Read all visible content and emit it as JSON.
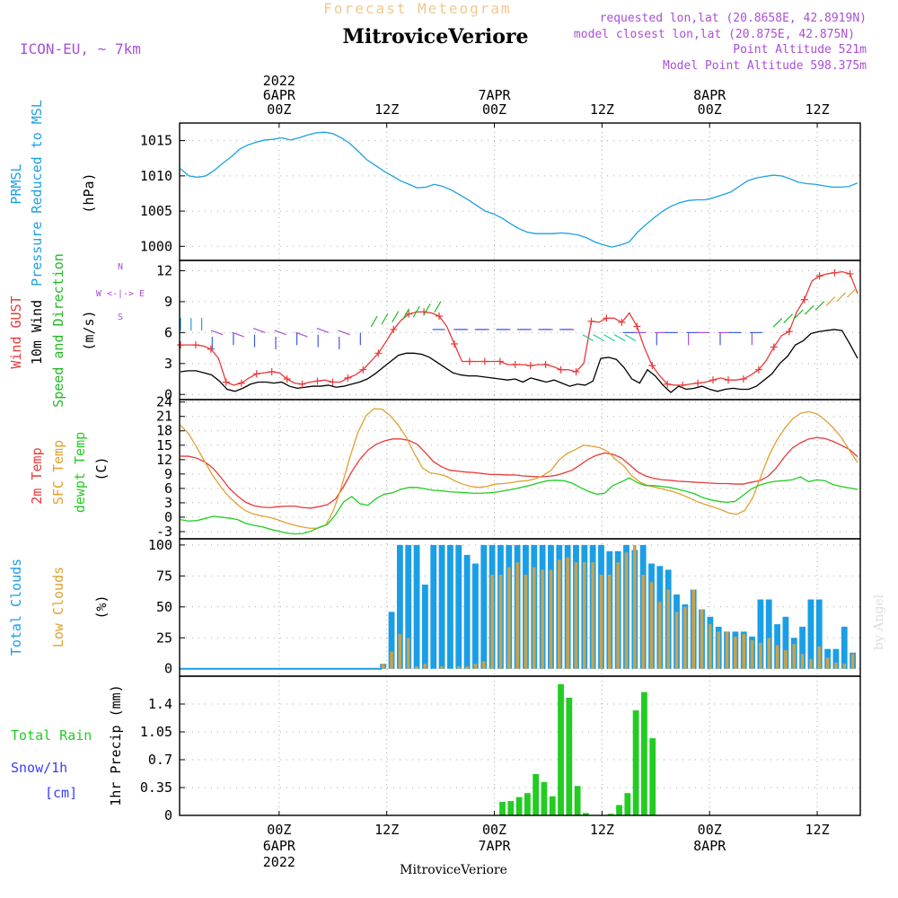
{
  "header": {
    "forecast_title": "Forecast Meteogram",
    "station": "MitroviceVeriore",
    "model": "ICON-EU, ~ 7km",
    "requested": "requested lon,lat (20.8658E, 42.8919N)",
    "closest": "model closest lon,lat (20.875E, 42.875N)",
    "point_altitude": "Point Altitude 521m",
    "model_altitude": "Model Point Altitude 598.375m",
    "footer_station": "MitroviceVeriore",
    "watermark": "by Angel"
  },
  "colors": {
    "pressure": "#1ba1e2",
    "gust": "#e83a3a",
    "wind": "#000000",
    "direction": "#22bb22",
    "temp2m": "#e83a3a",
    "sfctemp": "#e0a030",
    "dewpt": "#22cc22",
    "total_clouds": "#1a9ee6",
    "low_clouds": "#c8a24e",
    "rain": "#22cc22",
    "snow": "#3b3bff",
    "header_purple": "#a94fd6",
    "header_orange": "#f0c890"
  },
  "time_axis": {
    "top_labels": [
      {
        "t": 6,
        "lines": [
          "2022",
          "6APR",
          "00Z"
        ]
      },
      {
        "t": 18,
        "lines": [
          "12Z"
        ]
      },
      {
        "t": 30,
        "lines": [
          "7APR",
          "00Z"
        ]
      },
      {
        "t": 42,
        "lines": [
          "12Z"
        ]
      },
      {
        "t": 54,
        "lines": [
          "8APR",
          "00Z"
        ]
      },
      {
        "t": 66,
        "lines": [
          "12Z"
        ]
      }
    ],
    "bottom_labels": [
      {
        "t": 6,
        "lines": [
          "00Z",
          "6APR",
          "2022"
        ]
      },
      {
        "t": 18,
        "lines": [
          "12Z"
        ]
      },
      {
        "t": 30,
        "lines": [
          "00Z",
          "7APR"
        ]
      },
      {
        "t": 42,
        "lines": [
          "12Z"
        ]
      },
      {
        "t": 54,
        "lines": [
          "00Z",
          "8APR"
        ]
      },
      {
        "t": 66,
        "lines": [
          "12Z"
        ]
      }
    ],
    "range": [
      -5.1,
      70.8
    ]
  },
  "panel_labels": {
    "pressure": {
      "a": "PRMSL",
      "b": "Pressure Reduced to MSL",
      "unit": "(hPa)"
    },
    "wind": {
      "a": "Wind GUST",
      "b": "10m Wind",
      "c": "Speed and Direction",
      "unit": "(m/s)",
      "compass": [
        "N",
        "W <-|-> E",
        "S"
      ]
    },
    "temp": {
      "a": "2m Temp",
      "b": "SFC Temp",
      "c": "dewpt Temp",
      "unit": "(C)"
    },
    "clouds": {
      "a": "Total Clouds",
      "b": "Low Clouds",
      "unit": "(%)"
    },
    "precip": {
      "a": "Total  Rain",
      "b": "Snow/1h",
      "c": "[cm]",
      "unit": "1hr Precip (mm)"
    }
  },
  "chart_data": [
    {
      "type": "line",
      "name": "pressure",
      "ylim": [
        998,
        1017.5
      ],
      "yticks": [
        1000,
        1005,
        1010,
        1015
      ],
      "series": [
        {
          "name": "PRMSL",
          "values": [
            1011,
            1010,
            1009.8,
            1010,
            1010.8,
            1011.8,
            1012.7,
            1013.8,
            1014.4,
            1014.8,
            1015.1,
            1015.2,
            1015.4,
            1015.1,
            1015.4,
            1015.8,
            1016.1,
            1016.2,
            1016,
            1015.4,
            1014.6,
            1013.5,
            1012.3,
            1011.5,
            1010.7,
            1010,
            1009.3,
            1008.8,
            1008.3,
            1008.4,
            1008.8,
            1008.5,
            1008,
            1007.3,
            1006.6,
            1005.8,
            1005,
            1004.6,
            1004,
            1003.2,
            1002.5,
            1002,
            1001.8,
            1001.8,
            1001.8,
            1001.9,
            1001.8,
            1001.6,
            1001.2,
            1000.6,
            1000.2,
            999.9,
            1000.2,
            1000.6,
            1002,
            1003.1,
            1004.1,
            1005,
            1005.7,
            1006.2,
            1006.5,
            1006.6,
            1006.6,
            1006.9,
            1007.3,
            1007.7,
            1008.5,
            1009.3,
            1009.7,
            1009.9,
            1010.1,
            1010,
            1009.6,
            1009.1,
            1008.9,
            1008.8,
            1008.6,
            1008.4,
            1008.4,
            1008.5,
            1009
          ]
        }
      ]
    },
    {
      "type": "line",
      "name": "wind",
      "ylim": [
        -0.5,
        13
      ],
      "yticks": [
        0,
        3,
        6,
        9,
        12
      ],
      "series": [
        {
          "name": "Wind GUST",
          "values": [
            4.8,
            4.8,
            4.8,
            4.7,
            4.4,
            3.5,
            1.2,
            0.9,
            1.1,
            1.6,
            2,
            2.1,
            2.2,
            2.1,
            1.5,
            1.1,
            1,
            1.2,
            1.3,
            1.4,
            1.2,
            1.2,
            1.6,
            1.9,
            2.4,
            3.2,
            4,
            5.1,
            6.3,
            7.2,
            7.8,
            8,
            8,
            7.9,
            7.6,
            6.6,
            4.9,
            3.2,
            3.2,
            3.2,
            3.2,
            3.2,
            3.2,
            2.9,
            2.9,
            2.9,
            2.8,
            2.9,
            2.9,
            2.7,
            2.4,
            2.4,
            2.2,
            3,
            7.1,
            7,
            7.4,
            7.4,
            7,
            7.9,
            6.6,
            4.5,
            2.8,
            1.8,
            1,
            0.9,
            0.9,
            1,
            1.1,
            1.2,
            1.4,
            1.6,
            1.4,
            1.4,
            1.5,
            1.9,
            2.4,
            3.3,
            4.6,
            5.7,
            6.1,
            8,
            9.2,
            11,
            11.5,
            11.7,
            11.8,
            11.9,
            11.7,
            9.8
          ]
        },
        {
          "name": "10m Wind",
          "values": [
            2.2,
            2.3,
            2.3,
            2.1,
            1.9,
            1.3,
            0.5,
            0.3,
            0.6,
            1,
            1.2,
            1.2,
            1.1,
            1.2,
            0.8,
            0.6,
            0.7,
            0.8,
            0.8,
            0.9,
            0.7,
            0.8,
            1,
            1.2,
            1.5,
            2,
            2.6,
            3.2,
            3.8,
            4,
            4,
            3.9,
            3.6,
            3.1,
            2.6,
            2.1,
            1.9,
            1.8,
            1.8,
            1.7,
            1.6,
            1.5,
            1.4,
            1.5,
            1.2,
            1.6,
            1.4,
            1.2,
            1.4,
            1.1,
            0.8,
            1,
            0.9,
            1.3,
            3.5,
            3.6,
            3.4,
            2.6,
            1.5,
            1.1,
            2.4,
            1.8,
            0.9,
            0.2,
            0.8,
            0.5,
            0.6,
            0.8,
            0.5,
            0.3,
            0.5,
            0.6,
            0.5,
            0.5,
            0.8,
            1.4,
            2,
            3,
            3.7,
            4.8,
            5.2,
            5.9,
            6.1,
            6.2,
            6.3,
            6.2,
            4.9,
            3.5
          ]
        }
      ]
    },
    {
      "type": "line",
      "name": "temperature",
      "ylim": [
        -4.5,
        24.5
      ],
      "yticks": [
        -3,
        0,
        3,
        6,
        9,
        12,
        15,
        18,
        21,
        24
      ],
      "series": [
        {
          "name": "2m Temp",
          "values": [
            12.7,
            12.7,
            12.3,
            11.5,
            10.2,
            8.2,
            6,
            4.4,
            3.1,
            2.4,
            2.1,
            2,
            2.2,
            2.3,
            2.3,
            2,
            1.9,
            2.2,
            2.6,
            3.8,
            6.4,
            9.5,
            12.1,
            14,
            15.2,
            15.9,
            16.3,
            16.3,
            16,
            15.2,
            13.5,
            11.6,
            10.5,
            9.8,
            9.6,
            9.4,
            9.3,
            9.1,
            8.9,
            8.9,
            8.8,
            8.8,
            8.6,
            8.5,
            8.4,
            8.5,
            8.7,
            9.2,
            9.8,
            10.9,
            12.1,
            12.9,
            13.4,
            13.1,
            12.4,
            11,
            9.5,
            8.6,
            8.1,
            7.8,
            7.7,
            7.5,
            7.4,
            7.3,
            7.2,
            7.1,
            7,
            7,
            6.9,
            6.9,
            7.3,
            7.6,
            8.5,
            10.2,
            12.5,
            14.4,
            15.5,
            16.3,
            16.6,
            16.4,
            15.8,
            15,
            14.1,
            12.6
          ]
        },
        {
          "name": "SFC Temp",
          "values": [
            19.2,
            17.4,
            14.6,
            11.6,
            8.7,
            6.3,
            4.3,
            2.7,
            1.4,
            0.7,
            0.3,
            0,
            -0.5,
            -1.1,
            -1.6,
            -2,
            -2.3,
            -2.3,
            -1.7,
            1.5,
            6.5,
            12.4,
            17.6,
            21.1,
            22.6,
            22.5,
            21.2,
            19.2,
            16.7,
            13.3,
            10.3,
            9.2,
            9,
            8.5,
            7.6,
            6.9,
            6.4,
            6.2,
            6.4,
            6.9,
            7,
            7.2,
            7.5,
            7.6,
            8,
            8.7,
            9.8,
            12,
            13.3,
            14.1,
            15,
            14.8,
            14.5,
            13.7,
            12,
            10.7,
            8.6,
            7.3,
            6.6,
            6.2,
            5.8,
            5.4,
            4.8,
            4.1,
            3.3,
            2.7,
            2.2,
            1.6,
            0.9,
            0.6,
            1.4,
            4.1,
            8.5,
            12.8,
            16.1,
            18.6,
            20.6,
            21.7,
            22,
            21.5,
            20.2,
            18.6,
            16.6,
            13.9,
            11.4
          ]
        },
        {
          "name": "dewpt Temp",
          "values": [
            -0.5,
            -0.8,
            -0.7,
            -0.3,
            0.2,
            0,
            -0.2,
            -0.5,
            -1.3,
            -1.7,
            -2,
            -2.5,
            -2.9,
            -3.3,
            -3.5,
            -3.4,
            -2.9,
            -2.1,
            -1.5,
            0.5,
            3.2,
            4.3,
            2.8,
            2.5,
            3.9,
            4.8,
            5.1,
            5.8,
            6.2,
            6.2,
            5.9,
            5.6,
            5.5,
            5.3,
            5.2,
            5.1,
            5,
            5,
            5.1,
            5.3,
            5.6,
            5.9,
            6.3,
            6.7,
            7.2,
            7.6,
            7.7,
            7.6,
            7.1,
            6.2,
            5.4,
            4.8,
            5,
            6.6,
            7.3,
            8.2,
            7.2,
            6.6,
            6.6,
            6.4,
            6.2,
            5.8,
            5.4,
            4.9,
            4.1,
            3.6,
            3.3,
            3.1,
            3.3,
            4.6,
            5.9,
            6.7,
            7.2,
            7.5,
            7.6,
            7.8,
            8.4,
            7.4,
            7.8,
            7.6,
            6.8,
            6.4,
            6.1,
            5.8
          ]
        }
      ]
    },
    {
      "type": "bar",
      "name": "clouds",
      "ylim": [
        -6,
        105
      ],
      "yticks": [
        0,
        25,
        50,
        75,
        100
      ],
      "series": [
        {
          "name": "Total Clouds",
          "values": [
            4,
            46,
            100,
            100,
            100,
            68,
            100,
            100,
            100,
            100,
            92,
            85,
            100,
            100,
            100,
            100,
            100,
            100,
            100,
            100,
            100,
            100,
            100,
            100,
            100,
            100,
            100,
            95,
            95,
            100,
            96,
            100,
            85,
            83,
            80,
            60,
            52,
            64,
            48,
            42,
            34,
            30,
            30,
            30,
            26,
            56,
            56,
            36,
            42,
            25,
            34,
            56,
            56,
            16,
            16,
            34,
            13
          ]
        },
        {
          "name": "Low Clouds",
          "values": [
            4,
            14,
            28,
            25,
            2,
            4,
            0,
            2,
            0,
            2,
            2,
            4,
            6,
            76,
            76,
            82,
            86,
            76,
            82,
            80,
            80,
            88,
            90,
            86,
            86,
            86,
            76,
            76,
            86,
            94,
            100,
            76,
            70,
            54,
            64,
            46,
            50,
            64,
            48,
            36,
            30,
            30,
            26,
            28,
            23,
            21,
            25,
            19,
            15,
            20,
            12,
            8,
            18,
            9,
            5,
            4,
            12
          ]
        }
      ]
    },
    {
      "type": "bar",
      "name": "precipitation",
      "ylim": [
        0,
        1.75
      ],
      "yticks": [
        0,
        0.35,
        0.7,
        1.05,
        1.4
      ],
      "yticklabels": [
        "0",
        "0.35",
        "0.7",
        "1.05",
        "1.4"
      ],
      "series": [
        {
          "name": "Total Rain",
          "values": [
            0.17,
            0.18,
            0.23,
            0.28,
            0.52,
            0.42,
            0.24,
            1.65,
            1.48,
            0.37,
            0.03,
            0,
            0,
            0.02,
            0.13,
            0.28,
            1.32,
            1.55,
            0.97
          ]
        }
      ]
    }
  ]
}
